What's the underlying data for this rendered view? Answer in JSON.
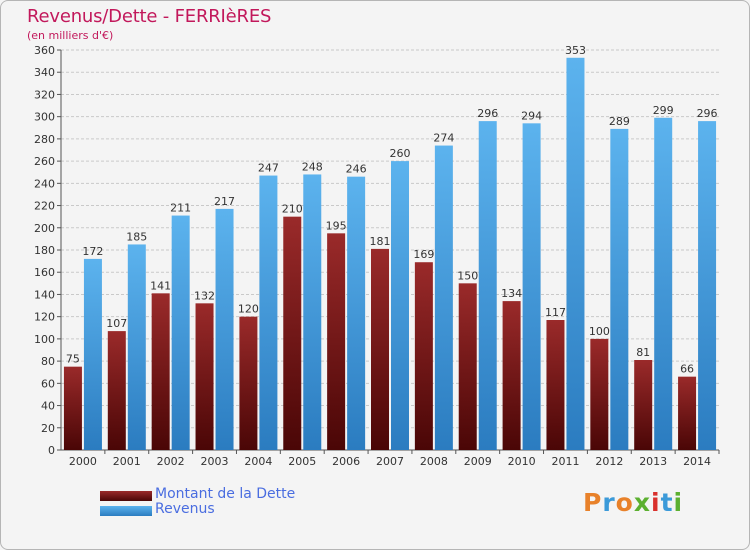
{
  "header": {
    "title": "Revenus/Dette - FERRIèRES",
    "subtitle": "(en milliers d'€)"
  },
  "chart_data": {
    "type": "bar",
    "categories": [
      "2000",
      "2001",
      "2002",
      "2003",
      "2004",
      "2005",
      "2006",
      "2007",
      "2008",
      "2009",
      "2010",
      "2011",
      "2012",
      "2013",
      "2014"
    ],
    "series": [
      {
        "name": "Montant de la Dette",
        "color": "#8b1d1d",
        "values": [
          75,
          107,
          141,
          132,
          120,
          210,
          195,
          181,
          169,
          150,
          134,
          117,
          100,
          81,
          66
        ]
      },
      {
        "name": "Revenus",
        "color": "#4ea7e6",
        "values": [
          172,
          185,
          211,
          217,
          247,
          248,
          246,
          260,
          274,
          296,
          294,
          353,
          289,
          299,
          296
        ]
      }
    ],
    "ylim": [
      0,
      360
    ],
    "ytick_step": 20,
    "grid": true,
    "legend": "bottom-left"
  },
  "logo": {
    "text": "Proxiti",
    "colors": [
      "#e8812a",
      "#3b9ad9",
      "#e8812a",
      "#5cb030",
      "#d9302c",
      "#3b9ad9",
      "#5cb030"
    ]
  }
}
